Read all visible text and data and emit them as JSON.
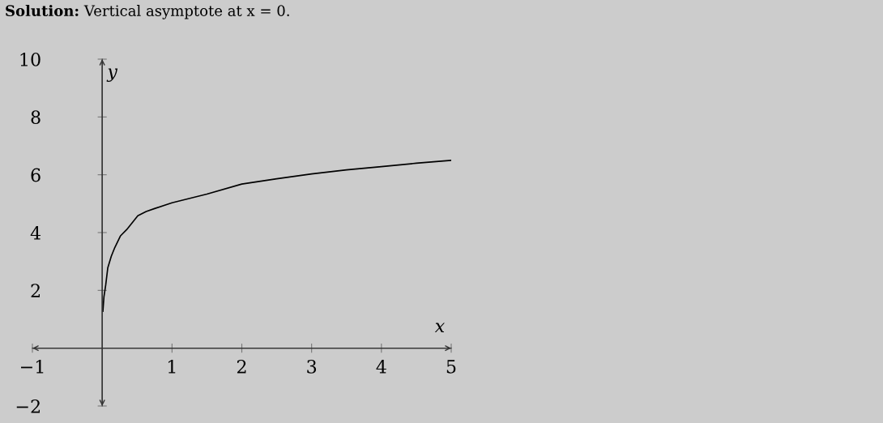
{
  "chart_data": {
    "type": "line",
    "title": "Solution: Vertical asymptote at x = 0.",
    "xlabel": "x",
    "ylabel": "y",
    "x": [
      0.01,
      0.025,
      0.05,
      0.08,
      0.13,
      0.18,
      0.26,
      0.35,
      0.51,
      0.63,
      0.75,
      1,
      1.5,
      2,
      2.5,
      3,
      3.5,
      4,
      4.5,
      5
    ],
    "series": [
      {
        "color": "#000000",
        "values": [
          1.28,
          1.78,
          2.18,
          2.78,
          3.18,
          3.48,
          3.88,
          4.1,
          4.58,
          4.73,
          4.83,
          5.03,
          5.33,
          5.68,
          5.86,
          6.03,
          6.17,
          6.28,
          6.4,
          6.5
        ]
      }
    ],
    "xlim": [
      -1,
      5
    ],
    "ylim": [
      -2,
      10
    ],
    "xticks": [
      {
        "value": -1,
        "label": "−1"
      },
      1,
      2,
      3,
      4,
      5
    ],
    "yticks": [
      {
        "value": -2,
        "label": "−2"
      },
      2,
      4,
      6,
      8,
      10
    ],
    "grid": false,
    "marker": "none",
    "line_style": "solid"
  }
}
